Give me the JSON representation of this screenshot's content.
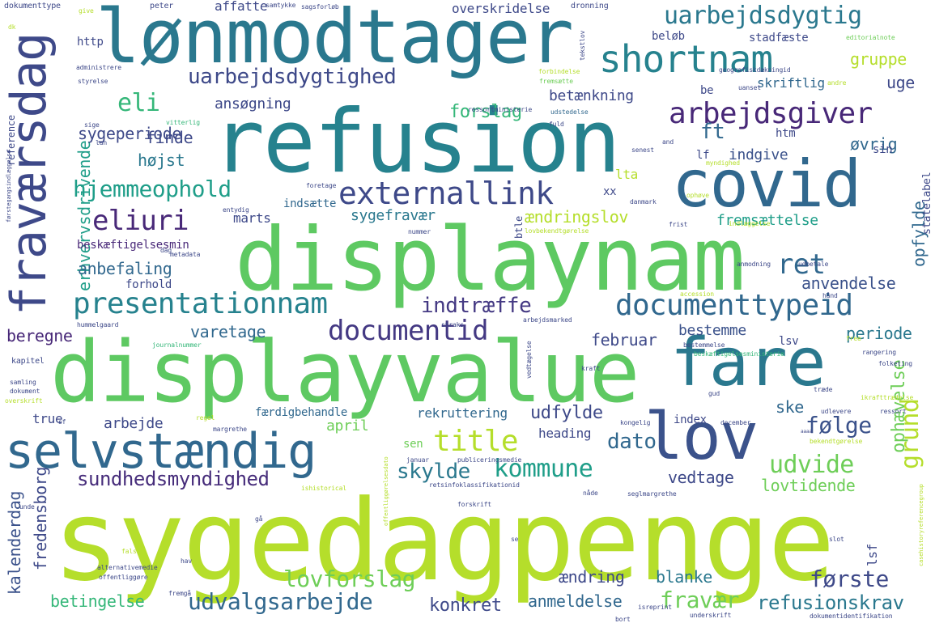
{
  "words": [
    {
      "text": "sygedagpenge",
      "color": "#b5de2b"
    },
    {
      "text": "displayvalue",
      "color": "#5ec962"
    },
    {
      "text": "displaynam",
      "color": "#5ec962"
    },
    {
      "text": "refusion",
      "color": "#26828e"
    },
    {
      "text": "lønmodtager",
      "color": "#2a788e"
    },
    {
      "text": "covid",
      "color": "#31688e"
    },
    {
      "text": "fare",
      "color": "#2a788e"
    },
    {
      "text": "lov",
      "color": "#3b528b"
    },
    {
      "text": "selvstændig",
      "color": "#31688e"
    },
    {
      "text": "shortnam",
      "color": "#26828e"
    },
    {
      "text": "fraværsdag",
      "color": "#3e4989"
    },
    {
      "text": "arbejdsgiver",
      "color": "#482878"
    },
    {
      "text": "presentationnam",
      "color": "#26828e"
    },
    {
      "text": "documenttypeid",
      "color": "#31688e"
    },
    {
      "text": "externallink",
      "color": "#3e4989"
    },
    {
      "text": "documentid",
      "color": "#443983"
    },
    {
      "text": "uarbejdsdygtig",
      "color": "#2a788e"
    },
    {
      "text": "uarbejdsdygtighed",
      "color": "#3e4989"
    },
    {
      "text": "title",
      "color": "#b5de2b"
    },
    {
      "text": "kommune",
      "color": "#1f9e89"
    },
    {
      "text": "eliuri",
      "color": "#482878"
    },
    {
      "text": "ret",
      "color": "#31688e"
    },
    {
      "text": "eli",
      "color": "#35b779"
    },
    {
      "text": "hjemmeophold",
      "color": "#1f9e89"
    },
    {
      "text": "indtræffe",
      "color": "#443983"
    },
    {
      "text": "udvide",
      "color": "#6ece58"
    },
    {
      "text": "grund",
      "color": "#b5de2b"
    },
    {
      "text": "lovforslag",
      "color": "#6ece58"
    },
    {
      "text": "udvalgsarbejde",
      "color": "#31688e"
    },
    {
      "text": "fravær",
      "color": "#6ece58"
    },
    {
      "text": "refusionskrav",
      "color": "#2a788e"
    },
    {
      "text": "første",
      "color": "#3e4989"
    },
    {
      "text": "erhvervsdrivende",
      "color": "#1f9e89"
    },
    {
      "text": "skylde",
      "color": "#2a788e"
    },
    {
      "text": "sundhedsmyndighed",
      "color": "#472d7b"
    },
    {
      "text": "dato",
      "color": "#31688e"
    },
    {
      "text": "følge",
      "color": "#3b528b"
    },
    {
      "text": "udfylde",
      "color": "#3e4989"
    },
    {
      "text": "ft",
      "color": "#31688e"
    },
    {
      "text": "forslag",
      "color": "#35b779"
    },
    {
      "text": "anbefaling",
      "color": "#31688e"
    },
    {
      "text": "sygeperiode",
      "color": "#3e4989"
    },
    {
      "text": "finde",
      "color": "#3e4989"
    },
    {
      "text": "højst",
      "color": "#2a788e"
    },
    {
      "text": "betingelse",
      "color": "#35b779"
    },
    {
      "text": "konkret",
      "color": "#3e4989"
    },
    {
      "text": "anmeldelse",
      "color": "#31688e"
    },
    {
      "text": "ændring",
      "color": "#3e4989"
    },
    {
      "text": "blanke",
      "color": "#2a788e"
    },
    {
      "text": "vedtage",
      "color": "#3e4989"
    },
    {
      "text": "lovtidende",
      "color": "#6ece58"
    },
    {
      "text": "ophævelse",
      "color": "#6ece58"
    },
    {
      "text": "kalenderdag",
      "color": "#3b528b"
    },
    {
      "text": "fredensborg",
      "color": "#3e4989"
    },
    {
      "text": "beregne",
      "color": "#482878"
    },
    {
      "text": "varetage",
      "color": "#31688e"
    },
    {
      "text": "februar",
      "color": "#3e4989"
    },
    {
      "text": "bestemme",
      "color": "#3b528b"
    },
    {
      "text": "periode",
      "color": "#2a788e"
    },
    {
      "text": "anvendelse",
      "color": "#3b528b"
    },
    {
      "text": "opfylde",
      "color": "#31688e"
    },
    {
      "text": "fremsættelse",
      "color": "#1f9e89"
    },
    {
      "text": "ændringslov",
      "color": "#b5de2b"
    },
    {
      "text": "sygefravær",
      "color": "#2a788e"
    },
    {
      "text": "indgive",
      "color": "#3b528b"
    },
    {
      "text": "øvrig",
      "color": "#31688e"
    },
    {
      "text": "gruppe",
      "color": "#b5de2b"
    },
    {
      "text": "uge",
      "color": "#3e4989"
    },
    {
      "text": "skriftlig",
      "color": "#31688e"
    },
    {
      "text": "stadfæste",
      "color": "#3e4989"
    },
    {
      "text": "beløb",
      "color": "#3e4989"
    },
    {
      "text": "betænkning",
      "color": "#3e4989"
    },
    {
      "text": "ansøgning",
      "color": "#3e4989"
    },
    {
      "text": "affatte",
      "color": "#3e4989"
    },
    {
      "text": "overskridelse",
      "color": "#3e4989"
    },
    {
      "text": "http",
      "color": "#3e4989"
    },
    {
      "text": "arbejde",
      "color": "#3e4989"
    },
    {
      "text": "true",
      "color": "#3e4989"
    },
    {
      "text": "april",
      "color": "#6ece58"
    },
    {
      "text": "rekruttering",
      "color": "#31688e"
    },
    {
      "text": "færdigbehandle",
      "color": "#31688e"
    },
    {
      "text": "heading",
      "color": "#3e4989"
    },
    {
      "text": "ske",
      "color": "#31688e"
    },
    {
      "text": "index",
      "color": "#3e4989"
    },
    {
      "text": "lsv",
      "color": "#3e4989"
    },
    {
      "text": "lsf",
      "color": "#3e4989"
    },
    {
      "text": "sen",
      "color": "#6ece58"
    },
    {
      "text": "lta",
      "color": "#b5de2b"
    },
    {
      "text": "xx",
      "color": "#3e4989"
    },
    {
      "text": "marts",
      "color": "#3e4989"
    },
    {
      "text": "forhold",
      "color": "#3e4989"
    },
    {
      "text": "indsætte",
      "color": "#31688e"
    },
    {
      "text": "htm",
      "color": "#3e4989"
    },
    {
      "text": "sin",
      "color": "#3e4989"
    },
    {
      "text": "lf",
      "color": "#3e4989"
    },
    {
      "text": "be",
      "color": "#3e4989"
    },
    {
      "text": "btle",
      "color": "#3e4989"
    },
    {
      "text": "statelabel",
      "color": "#3e4989"
    },
    {
      "text": "beskæftigelsesmin",
      "color": "#482878"
    },
    {
      "text": "reference",
      "color": "#3e4989"
    },
    {
      "text": "dokumenttype",
      "color": "#3e4989"
    },
    {
      "text": "peter",
      "color": "#3e4989"
    },
    {
      "text": "samtykke",
      "color": "#3e4989"
    },
    {
      "text": "sagsforløb",
      "color": "#3e4989"
    },
    {
      "text": "dronning",
      "color": "#3e4989"
    },
    {
      "text": "editorialnote",
      "color": "#6ece58"
    },
    {
      "text": "geografiskdækningid",
      "color": "#3e4989"
    },
    {
      "text": "uanset",
      "color": "#3e4989"
    },
    {
      "text": "ressortministerie",
      "color": "#3e4989"
    },
    {
      "text": "udstedelse",
      "color": "#31688e"
    },
    {
      "text": "fuld",
      "color": "#3e4989"
    },
    {
      "text": "tekstlov",
      "color": "#3e4989"
    },
    {
      "text": "give",
      "color": "#b5de2b"
    },
    {
      "text": "dk",
      "color": "#b5de2b"
    },
    {
      "text": "administrere",
      "color": "#3e4989"
    },
    {
      "text": "styrelse",
      "color": "#3e4989"
    },
    {
      "text": "sige",
      "color": "#3e4989"
    },
    {
      "text": "lan",
      "color": "#3e4989"
    },
    {
      "text": "vitterlig",
      "color": "#35b779"
    },
    {
      "text": "forbindelse",
      "color": "#b5de2b"
    },
    {
      "text": "fremsætte",
      "color": "#6ece58"
    },
    {
      "text": "andre",
      "color": "#b5de2b"
    },
    {
      "text": "senest",
      "color": "#3e4989"
    },
    {
      "text": "and",
      "color": "#3e4989"
    },
    {
      "text": "myndighed",
      "color": "#b5de2b"
    },
    {
      "text": "foretage",
      "color": "#3e4989"
    },
    {
      "text": "ophøve",
      "color": "#b5de2b"
    },
    {
      "text": "entydig",
      "color": "#3e4989"
    },
    {
      "text": "danmark",
      "color": "#3e4989"
    },
    {
      "text": "indlæggelse",
      "color": "#b5de2b"
    },
    {
      "text": "frist",
      "color": "#3e4989"
    },
    {
      "text": "lovbekendtgørelse",
      "color": "#b5de2b"
    },
    {
      "text": "nummer",
      "color": "#3e4989"
    },
    {
      "text": "metadata",
      "color": "#3e4989"
    },
    {
      "text": "dag",
      "color": "#3e4989"
    },
    {
      "text": "anmodning",
      "color": "#3e4989"
    },
    {
      "text": "udbetale",
      "color": "#3e4989"
    },
    {
      "text": "accession",
      "color": "#b5de2b"
    },
    {
      "text": "hånd",
      "color": "#3e4989"
    },
    {
      "text": "arbejdsmarked",
      "color": "#3e4989"
    },
    {
      "text": "straks",
      "color": "#3e4989"
    },
    {
      "text": "hummelgaard",
      "color": "#3e4989"
    },
    {
      "text": "journalnummer",
      "color": "#35b779"
    },
    {
      "text": "free",
      "color": "#b5de2b"
    },
    {
      "text": "bestemmelse",
      "color": "#3e4989"
    },
    {
      "text": "beskæftigelsesministerie",
      "color": "#35b779"
    },
    {
      "text": "rangering",
      "color": "#3e4989"
    },
    {
      "text": "folketing",
      "color": "#3e4989"
    },
    {
      "text": "kapitel",
      "color": "#3e4989"
    },
    {
      "text": "samling",
      "color": "#3e4989"
    },
    {
      "text": "dokument",
      "color": "#3e4989"
    },
    {
      "text": "vedtægelse",
      "color": "#3e4989"
    },
    {
      "text": "kraft",
      "color": "#3e4989"
    },
    {
      "text": "træde",
      "color": "#3e4989"
    },
    {
      "text": "gud",
      "color": "#3e4989"
    },
    {
      "text": "ikrafttrædelse",
      "color": "#b5de2b"
    },
    {
      "text": "overskrift",
      "color": "#b5de2b"
    },
    {
      "text": "sf",
      "color": "#3e4989"
    },
    {
      "text": "regel",
      "color": "#b5de2b"
    },
    {
      "text": "margrethe",
      "color": "#3e4989"
    },
    {
      "text": "kongelig",
      "color": "#3e4989"
    },
    {
      "text": "december",
      "color": "#3e4989"
    },
    {
      "text": "udlevere",
      "color": "#3e4989"
    },
    {
      "text": "ressort",
      "color": "#3e4989"
    },
    {
      "text": "bekendtgørelse",
      "color": "#b5de2b"
    },
    {
      "text": "aaaa",
      "color": "#3e4989"
    },
    {
      "text": "januar",
      "color": "#3e4989"
    },
    {
      "text": "publiceringsmedie",
      "color": "#3e4989"
    },
    {
      "text": "ishistorical",
      "color": "#b5de2b"
    },
    {
      "text": "retsinfoklassifikationid",
      "color": "#3e4989"
    },
    {
      "text": "seglmargrethe",
      "color": "#3e4989"
    },
    {
      "text": "nåde",
      "color": "#3e4989"
    },
    {
      "text": "forskrift",
      "color": "#3e4989"
    },
    {
      "text": "offentliggørelsesdato",
      "color": "#b5de2b"
    },
    {
      "text": "casehistoryreferencegroup",
      "color": "#b5de2b"
    },
    {
      "text": "førstegangsindlæggelse",
      "color": "#3e4989"
    },
    {
      "text": "unde",
      "color": "#3e4989"
    },
    {
      "text": "fals",
      "color": "#b5de2b"
    },
    {
      "text": "gå",
      "color": "#3e4989"
    },
    {
      "text": "se",
      "color": "#3e4989"
    },
    {
      "text": "hav",
      "color": "#3e4989"
    },
    {
      "text": "slot",
      "color": "#3e4989"
    },
    {
      "text": "alternativemedie",
      "color": "#3e4989"
    },
    {
      "text": "offentliggøre",
      "color": "#3e4989"
    },
    {
      "text": "fremgå",
      "color": "#3e4989"
    },
    {
      "text": "isreprint",
      "color": "#3e4989"
    },
    {
      "text": "bort",
      "color": "#3e4989"
    },
    {
      "text": "underskrift",
      "color": "#3e4989"
    },
    {
      "text": "dokumentidentifikation",
      "color": "#3e4989"
    }
  ]
}
